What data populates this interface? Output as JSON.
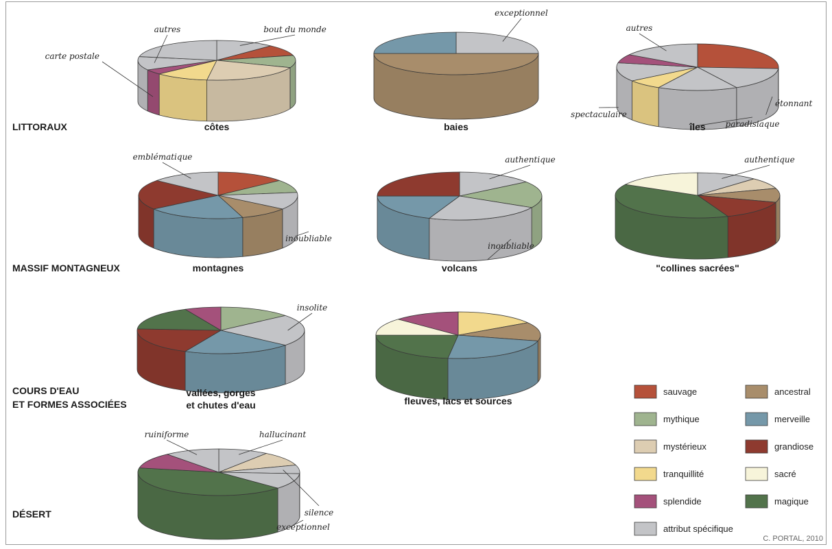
{
  "colors": {
    "sauvage": "#b5513a",
    "mythique": "#9fb48f",
    "mysterieux": "#ddcdb2",
    "tranquillite": "#f2d98d",
    "splendide": "#a4517b",
    "attribut": "#c3c4c7",
    "ancestral": "#a88d6b",
    "merveille": "#7598a9",
    "grandiose": "#8e3a2f",
    "sacre": "#f7f4da",
    "magique": "#52734b"
  },
  "sections": [
    {
      "key": "littoraux",
      "label": "LITTORAUX",
      "lines": [
        "LITTORAUX"
      ]
    },
    {
      "key": "massif",
      "label": "MASSIF MONTAGNEUX",
      "lines": [
        "MASSIF MONTAGNEUX"
      ]
    },
    {
      "key": "cours",
      "label": "COURS D'EAU ET FORMES ASSOCIÉES",
      "lines": [
        "COURS D'EAU",
        "ET FORMES ASSOCIÉES"
      ]
    },
    {
      "key": "desert",
      "label": "DÉSERT",
      "lines": [
        "DÉSERT"
      ]
    }
  ],
  "legend": {
    "items": [
      {
        "key": "sauvage",
        "label": "sauvage"
      },
      {
        "key": "ancestral",
        "label": "ancestral"
      },
      {
        "key": "mythique",
        "label": "mythique"
      },
      {
        "key": "merveille",
        "label": "merveille"
      },
      {
        "key": "mysterieux",
        "label": "mystérieux"
      },
      {
        "key": "grandiose",
        "label": "grandiose"
      },
      {
        "key": "tranquillite",
        "label": "tranquillité"
      },
      {
        "key": "sacre",
        "label": "sacré"
      },
      {
        "key": "splendide",
        "label": "splendide"
      },
      {
        "key": "magique",
        "label": "magique"
      },
      {
        "key": "attribut",
        "label": "attribut spécifique"
      }
    ]
  },
  "credit": "C. PORTAL, 2010",
  "chart_data": [
    {
      "type": "pie",
      "id": "cotes",
      "section": "littoraux",
      "title": "côtes",
      "title_lines": [
        "côtes"
      ],
      "slices": [
        {
          "category": "attribut",
          "value": 12,
          "label": "bout du monde"
        },
        {
          "category": "sauvage",
          "value": 9
        },
        {
          "category": "mythique",
          "value": 10
        },
        {
          "category": "mysterieux",
          "value": 21
        },
        {
          "category": "tranquillite",
          "value": 11
        },
        {
          "category": "splendide",
          "value": 4,
          "label": "carte postale"
        },
        {
          "category": "attribut",
          "value": 11,
          "label": "autres"
        },
        {
          "category": "attribut",
          "value": 22
        }
      ]
    },
    {
      "type": "pie",
      "id": "baies",
      "section": "littoraux",
      "title": "baies",
      "title_lines": [
        "baies"
      ],
      "slices": [
        {
          "category": "attribut",
          "value": 25,
          "label": "exceptionnel"
        },
        {
          "category": "ancestral",
          "value": 50
        },
        {
          "category": "merveille",
          "value": 25
        }
      ]
    },
    {
      "type": "pie",
      "id": "iles",
      "section": "littoraux",
      "title": "îles",
      "title_lines": [
        "îles"
      ],
      "slices": [
        {
          "category": "sauvage",
          "value": 26
        },
        {
          "category": "attribut",
          "value": 16,
          "label": "étonnant"
        },
        {
          "category": "attribut",
          "value": 16,
          "label": "paradisiaque"
        },
        {
          "category": "tranquillite",
          "value": 7
        },
        {
          "category": "attribut",
          "value": 13,
          "label": "spectaculaire"
        },
        {
          "category": "splendide",
          "value": 6
        },
        {
          "category": "attribut",
          "value": 16,
          "label": "autres"
        }
      ]
    },
    {
      "type": "pie",
      "id": "montagnes",
      "section": "massif",
      "title": "montagnes",
      "title_lines": [
        "montagnes"
      ],
      "slices": [
        {
          "category": "sauvage",
          "value": 14
        },
        {
          "category": "mythique",
          "value": 9
        },
        {
          "category": "attribut",
          "value": 12,
          "label": "inoubliable"
        },
        {
          "category": "ancestral",
          "value": 10
        },
        {
          "category": "merveille",
          "value": 20
        },
        {
          "category": "grandiose",
          "value": 21
        },
        {
          "category": "attribut",
          "value": 14,
          "label": "emblématique"
        }
      ]
    },
    {
      "type": "pie",
      "id": "volcans",
      "section": "massif",
      "title": "volcans",
      "title_lines": [
        "volcans"
      ],
      "slices": [
        {
          "category": "attribut",
          "value": 15,
          "label": "authentique"
        },
        {
          "category": "mythique",
          "value": 18
        },
        {
          "category": "attribut",
          "value": 23,
          "label": "inoubliable"
        },
        {
          "category": "merveille",
          "value": 19
        },
        {
          "category": "grandiose",
          "value": 25
        }
      ]
    },
    {
      "type": "pie",
      "id": "collines",
      "section": "massif",
      "title": "\"collines sacrées\"",
      "title_lines": [
        "\"collines sacrées\""
      ],
      "slices": [
        {
          "category": "attribut",
          "value": 12,
          "label": "authentique"
        },
        {
          "category": "mysterieux",
          "value": 8
        },
        {
          "category": "ancestral",
          "value": 10
        },
        {
          "category": "grandiose",
          "value": 14
        },
        {
          "category": "magique",
          "value": 39
        },
        {
          "category": "sacre",
          "value": 17
        }
      ]
    },
    {
      "type": "pie",
      "id": "vallees",
      "section": "cours",
      "title": "vallées, gorges et chutes d'eau",
      "title_lines": [
        "vallées, gorges",
        "et chutes d'eau"
      ],
      "slices": [
        {
          "category": "mythique",
          "value": 14
        },
        {
          "category": "attribut",
          "value": 22,
          "label": "insolite"
        },
        {
          "category": "merveille",
          "value": 21
        },
        {
          "category": "grandiose",
          "value": 19
        },
        {
          "category": "magique",
          "value": 17
        },
        {
          "category": "splendide",
          "value": 7
        }
      ]
    },
    {
      "type": "pie",
      "id": "fleuves",
      "section": "cours",
      "title": "fleuves, lacs et sources",
      "title_lines": [
        "fleuves, lacs et sources"
      ],
      "slices": [
        {
          "category": "tranquillite",
          "value": 16
        },
        {
          "category": "ancestral",
          "value": 13
        },
        {
          "category": "merveille",
          "value": 23
        },
        {
          "category": "magique",
          "value": 23
        },
        {
          "category": "sacre",
          "value": 12
        },
        {
          "category": "splendide",
          "value": 13
        }
      ]
    },
    {
      "type": "pie",
      "id": "desert",
      "section": "desert",
      "title": "",
      "title_lines": [],
      "slices": [
        {
          "category": "attribut",
          "value": 10,
          "label": "hallucinant"
        },
        {
          "category": "mysterieux",
          "value": 10
        },
        {
          "category": "attribut",
          "value": 6,
          "label": "silence"
        },
        {
          "category": "attribut",
          "value": 11,
          "label": "exceptionnel"
        },
        {
          "category": "magique",
          "value": 41
        },
        {
          "category": "splendide",
          "value": 11
        },
        {
          "category": "attribut",
          "value": 11,
          "label": "ruiniforme"
        }
      ]
    }
  ]
}
